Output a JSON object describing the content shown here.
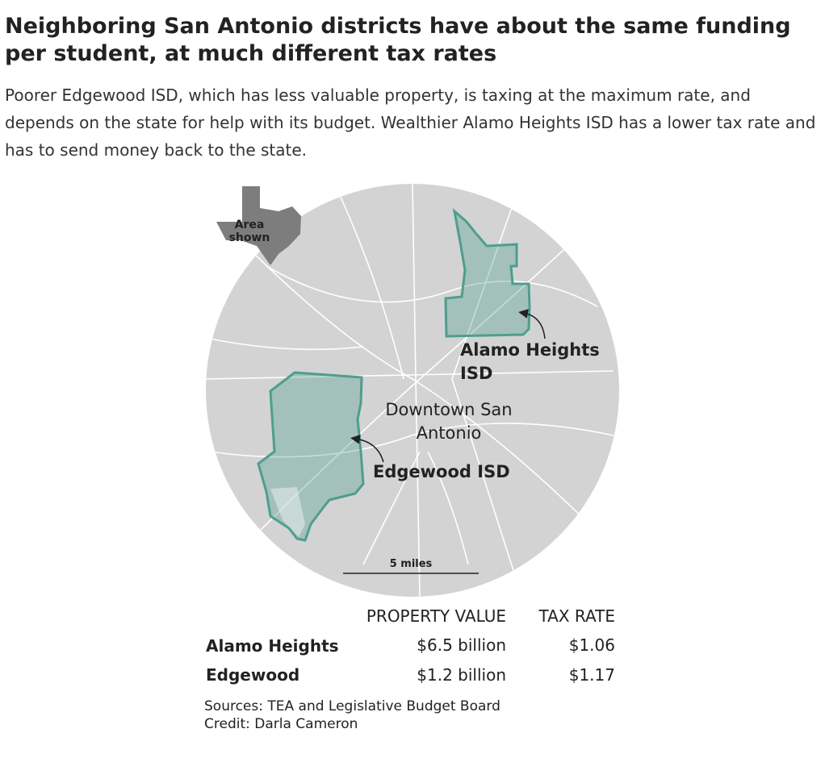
{
  "header": {
    "title": "Neighboring San Antonio districts have about the same funding per student, at much different tax rates",
    "subtitle": "Poorer Edgewood ISD, which has less valuable property, is taxing at the maximum rate, and depends on the state for help with its budget. Wealthier Alamo Heights ISD has a lower tax rate and has to send money back to the state."
  },
  "map": {
    "inset_label": "Area shown",
    "labels": [
      "Alamo Heights ISD",
      "Downtown San Antonio",
      "Edgewood ISD"
    ],
    "scale": "5 miles"
  },
  "table": {
    "columns": [
      "PROPERTY VALUE",
      "TAX RATE"
    ],
    "rows": [
      [
        "Alamo Heights",
        "$6.5 billion",
        "$1.06"
      ],
      [
        "Edgewood",
        "$1.2 billion",
        "$1.17"
      ]
    ]
  },
  "footer": {
    "sources": "Sources: TEA and Legislative Budget Board",
    "credit": "Credit: Darla Cameron"
  }
}
